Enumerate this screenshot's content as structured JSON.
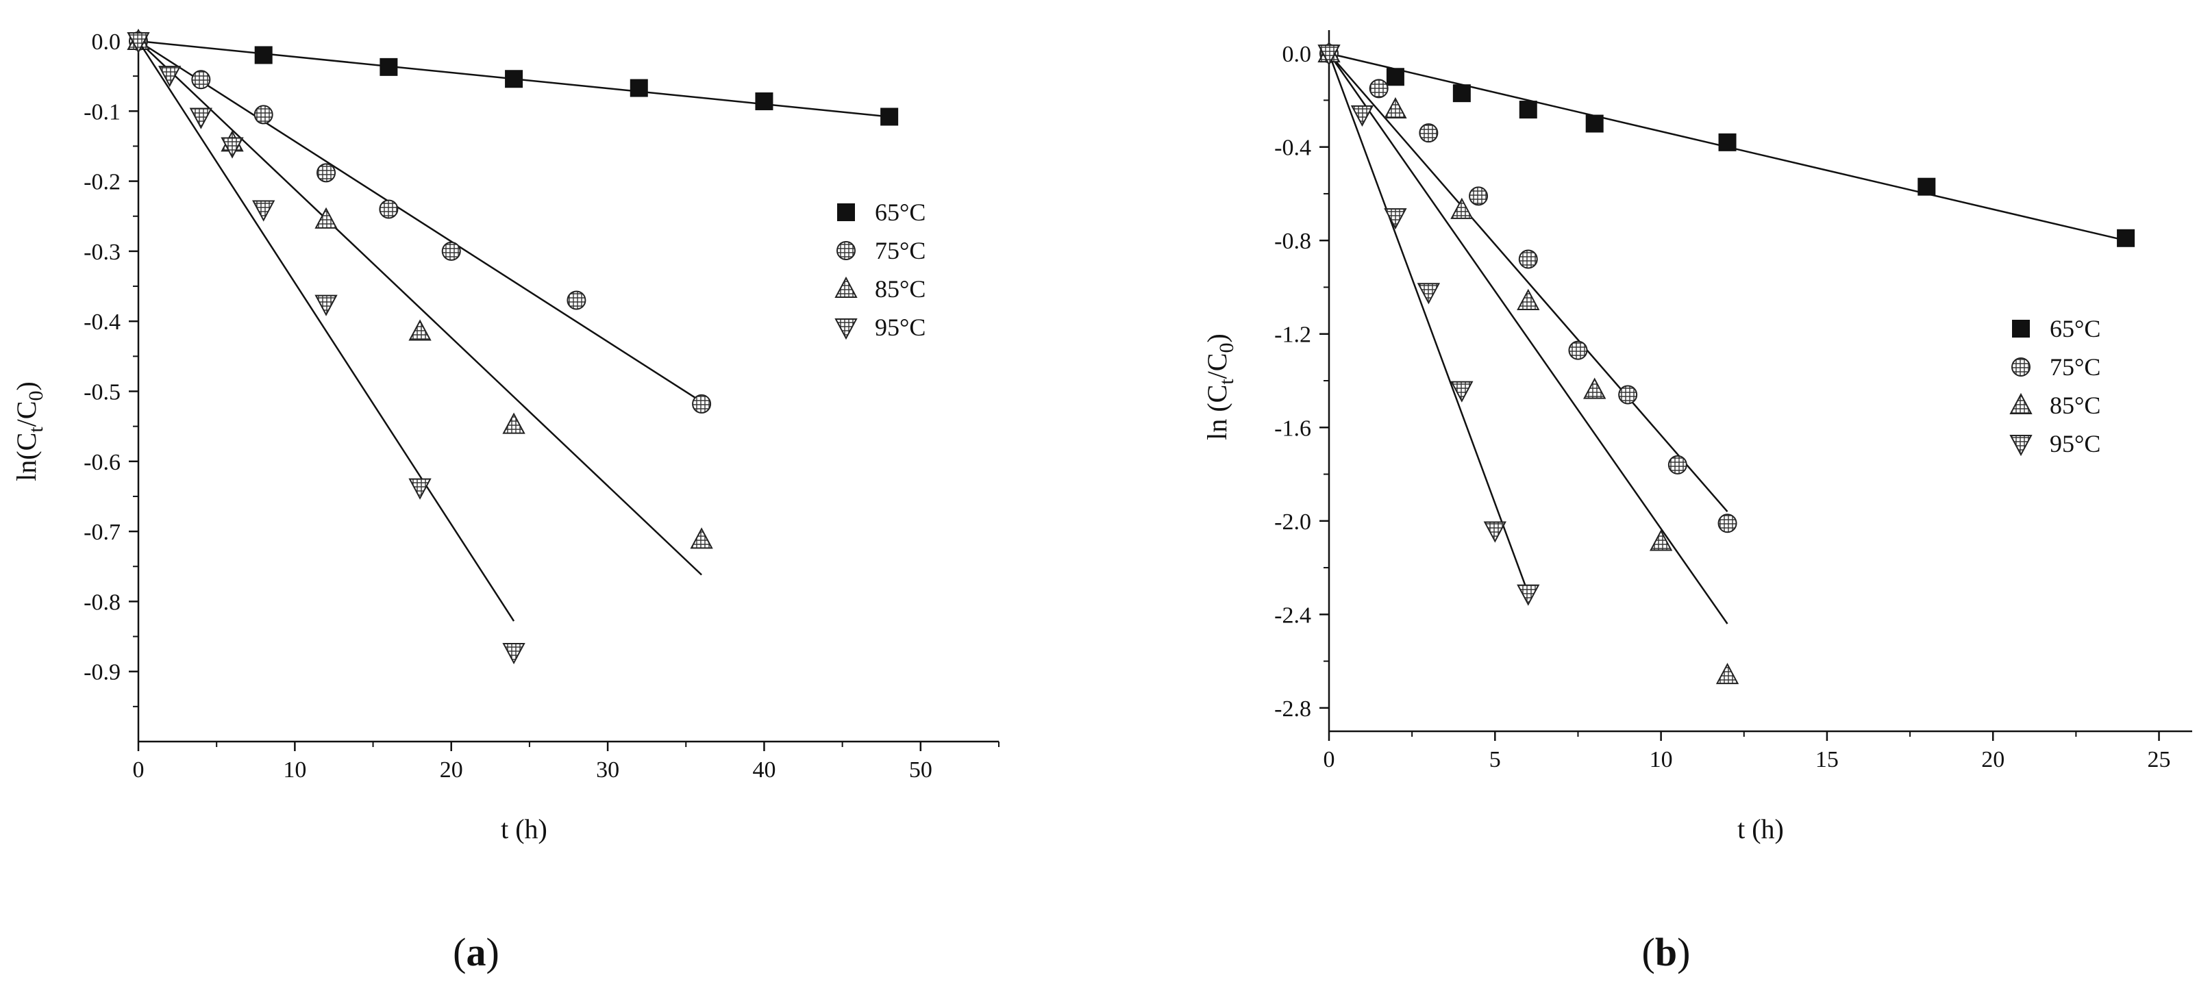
{
  "figure": {
    "panels": [
      {
        "label_open": "(",
        "label_letter": "a",
        "label_close": ")"
      },
      {
        "label_open": "(",
        "label_letter": "b",
        "label_close": ")"
      }
    ]
  },
  "chart_data": [
    {
      "type": "scatter",
      "panel": "a",
      "title": "",
      "xlabel": "t (h)",
      "ylabel_parts": {
        "pre": "ln(C",
        "sub1": "t",
        "mid": "/C",
        "sub2": "0",
        "post": ")"
      },
      "xlim": [
        0,
        55
      ],
      "ylim": [
        -1.0,
        0.0
      ],
      "xticks": [
        0,
        10,
        20,
        30,
        40,
        50
      ],
      "xtick_labels": [
        "0",
        "10",
        "20",
        "30",
        "40",
        "50"
      ],
      "yticks": [
        0.0,
        -0.1,
        -0.2,
        -0.3,
        -0.4,
        -0.5,
        -0.6,
        -0.7,
        -0.8,
        -0.9
      ],
      "ytick_labels": [
        "0.0",
        "-0.1",
        "-0.2",
        "-0.3",
        "-0.4",
        "-0.5",
        "-0.6",
        "-0.7",
        "-0.8",
        "-0.9"
      ],
      "legend_position": "right",
      "series": [
        {
          "name": "65°C",
          "marker": "square",
          "x": [
            0,
            8,
            16,
            24,
            32,
            40,
            48
          ],
          "y": [
            0.0,
            -0.02,
            -0.037,
            -0.054,
            -0.067,
            -0.086,
            -0.108
          ],
          "fit": [
            [
              0,
              0.0
            ],
            [
              48,
              -0.108
            ]
          ]
        },
        {
          "name": "75°C",
          "marker": "circle",
          "x": [
            0,
            4,
            8,
            12,
            16,
            20,
            28,
            36
          ],
          "y": [
            0.0,
            -0.055,
            -0.105,
            -0.188,
            -0.24,
            -0.3,
            -0.37,
            -0.518
          ],
          "fit": [
            [
              0,
              0.0
            ],
            [
              36,
              -0.515
            ]
          ]
        },
        {
          "name": "85°C",
          "marker": "triangle-up",
          "x": [
            0,
            6,
            12,
            18,
            24,
            36
          ],
          "y": [
            0.0,
            -0.145,
            -0.255,
            -0.415,
            -0.548,
            -0.712
          ],
          "fit": [
            [
              0,
              0.0
            ],
            [
              36,
              -0.762
            ]
          ]
        },
        {
          "name": "95°C",
          "marker": "triangle-down",
          "x": [
            0,
            2,
            4,
            6,
            8,
            12,
            18,
            24
          ],
          "y": [
            0.0,
            -0.048,
            -0.108,
            -0.15,
            -0.24,
            -0.375,
            -0.637,
            -0.872
          ],
          "fit": [
            [
              0,
              0.0
            ],
            [
              24,
              -0.828
            ]
          ]
        }
      ]
    },
    {
      "type": "scatter",
      "panel": "b",
      "title": "",
      "xlabel": "t (h)",
      "ylabel_parts": {
        "pre": "ln (C",
        "sub1": "t",
        "mid": "/C",
        "sub2": "0",
        "post": ")"
      },
      "xlim": [
        0,
        26
      ],
      "ylim": [
        -2.9,
        0.1
      ],
      "xticks": [
        0,
        5,
        10,
        15,
        20,
        25
      ],
      "xtick_labels": [
        "0",
        "5",
        "10",
        "15",
        "20",
        "25"
      ],
      "yticks": [
        0.0,
        -0.4,
        -0.8,
        -1.2,
        -1.6,
        -2.0,
        -2.4,
        -2.8
      ],
      "ytick_labels": [
        "0.0",
        "-0.4",
        "-0.8",
        "-1.2",
        "-1.6",
        "-2.0",
        "-2.4",
        "-2.8"
      ],
      "legend_position": "right",
      "series": [
        {
          "name": "65°C",
          "marker": "square",
          "x": [
            0,
            2,
            4,
            6,
            8,
            12,
            18,
            24
          ],
          "y": [
            0.0,
            -0.1,
            -0.17,
            -0.24,
            -0.3,
            -0.38,
            -0.57,
            -0.79
          ],
          "fit": [
            [
              0,
              0.0
            ],
            [
              24,
              -0.8
            ]
          ]
        },
        {
          "name": "75°C",
          "marker": "circle",
          "x": [
            0,
            1.5,
            3,
            4.5,
            6,
            7.5,
            9,
            10.5,
            12
          ],
          "y": [
            0.0,
            -0.15,
            -0.34,
            -0.61,
            -0.88,
            -1.27,
            -1.46,
            -1.76,
            -2.01
          ],
          "fit": [
            [
              0,
              0.0
            ],
            [
              12,
              -1.96
            ]
          ]
        },
        {
          "name": "85°C",
          "marker": "triangle-up",
          "x": [
            0,
            2,
            4,
            6,
            8,
            10,
            12
          ],
          "y": [
            0.0,
            -0.24,
            -0.67,
            -1.06,
            -1.44,
            -2.09,
            -2.66
          ],
          "fit": [
            [
              0,
              0.0
            ],
            [
              12,
              -2.44
            ]
          ]
        },
        {
          "name": "95°C",
          "marker": "triangle-down",
          "x": [
            0,
            1,
            2,
            3,
            4,
            5,
            6
          ],
          "y": [
            0.0,
            -0.26,
            -0.7,
            -1.02,
            -1.44,
            -2.04,
            -2.31
          ],
          "fit": [
            [
              0,
              0.0
            ],
            [
              6,
              -2.31
            ]
          ]
        }
      ]
    }
  ]
}
